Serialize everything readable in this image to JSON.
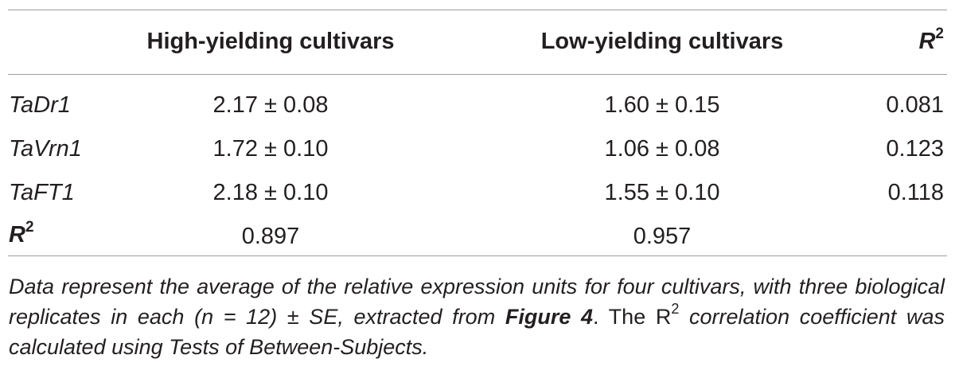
{
  "table": {
    "headers": {
      "high": "High-yielding cultivars",
      "low": "Low-yielding cultivars",
      "r2_base": "R",
      "r2_sup": "2"
    },
    "rows": [
      {
        "gene": "TaDr1",
        "high": "2.17 ± 0.08",
        "low": "1.60 ± 0.15",
        "r2": "0.081"
      },
      {
        "gene": "TaVrn1",
        "high": "1.72 ± 0.10",
        "low": "1.06 ± 0.08",
        "r2": "0.123"
      },
      {
        "gene": "TaFT1",
        "high": "2.18 ± 0.10",
        "low": "1.55 ± 0.10",
        "r2": "0.118"
      }
    ],
    "r2_row": {
      "label_base": "R",
      "label_sup": "2",
      "high": "0.897",
      "low": "0.957"
    }
  },
  "footnote": {
    "part1": "Data represent the average of the relative expression units for four cultivars, with three biological replicates in each (n = 12) ± SE, extracted from ",
    "figure_ref": "Figure 4",
    "part2": ". The R",
    "sup": "2",
    "part3": " correlation coefficient was calculated using Tests of Between-Subjects."
  }
}
